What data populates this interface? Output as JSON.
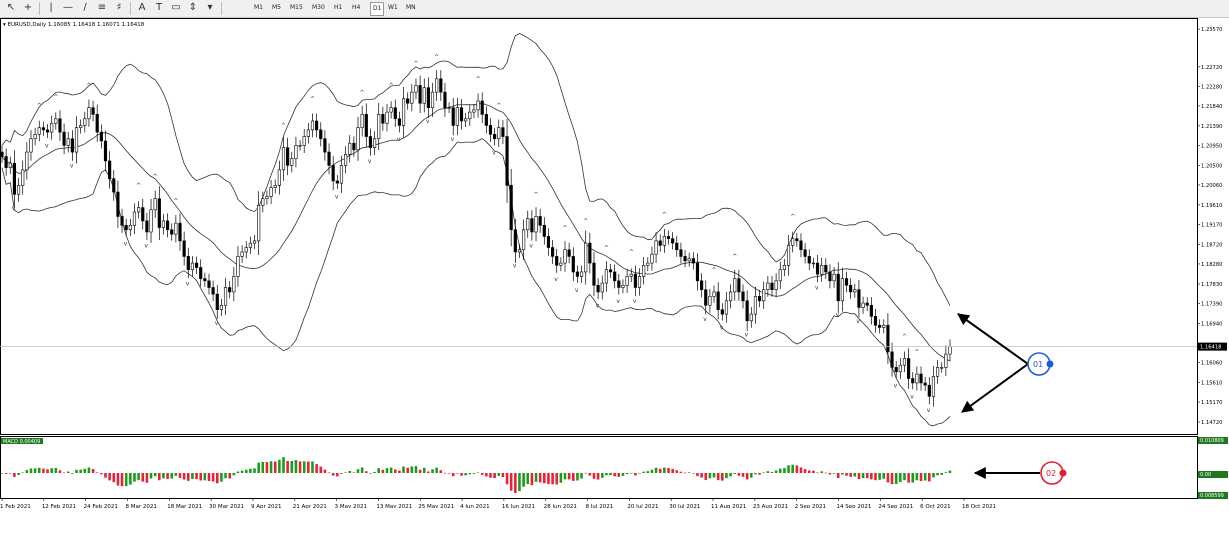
{
  "toolbar": {
    "tools": [
      {
        "name": "cursor-icon",
        "glyph": "↖"
      },
      {
        "name": "crosshair-icon",
        "glyph": "+"
      },
      {
        "name": "vertical-line-icon",
        "glyph": "|"
      },
      {
        "name": "horizontal-line-icon",
        "glyph": "—"
      },
      {
        "name": "trendline-icon",
        "glyph": "∕"
      },
      {
        "name": "channel-icon",
        "glyph": "≡"
      },
      {
        "name": "fibonacci-icon",
        "glyph": "♯"
      },
      {
        "name": "text-icon",
        "glyph": "A"
      },
      {
        "name": "label-icon",
        "glyph": "T"
      },
      {
        "name": "rectangle-icon",
        "glyph": "▭"
      },
      {
        "name": "arrows-icon",
        "glyph": "⇕"
      },
      {
        "name": "shapes-icon",
        "glyph": "▾"
      }
    ],
    "timeframes": [
      "M1",
      "M5",
      "M15",
      "M30",
      "H1",
      "H4",
      "D1",
      "W1",
      "MN"
    ],
    "active_timeframe": "D1"
  },
  "chart_data": {
    "type": "candlestick",
    "symbol_header": "EURUSD,Daily  1.16085 1.16418 1.16071 1.16418",
    "current_price_label": "1.16418",
    "current_price": 1.16418,
    "y_ticks": [
      "1.23570",
      "1.22720",
      "1.22280",
      "1.21840",
      "1.21390",
      "1.20950",
      "1.20500",
      "1.20060",
      "1.19610",
      "1.19170",
      "1.18720",
      "1.18280",
      "1.17830",
      "1.17390",
      "1.16940",
      "1.16060",
      "1.15610",
      "1.15170",
      "1.14720"
    ],
    "ylim": [
      1.1445,
      1.2382
    ],
    "x_ticks": [
      "1 Feb 2021",
      "12 Feb 2021",
      "24 Feb 2021",
      "8 Mar 2021",
      "18 Mar 2021",
      "30 Mar 2021",
      "9 Apr 2021",
      "21 Apr 2021",
      "3 May 2021",
      "13 May 2021",
      "25 May 2021",
      "4 Jun 2021",
      "16 Jun 2021",
      "28 Jun 2021",
      "8 Jul 2021",
      "20 Jul 2021",
      "30 Jul 2021",
      "11 Aug 2021",
      "23 Aug 2021",
      "2 Sep 2021",
      "14 Sep 2021",
      "24 Sep 2021",
      "6 Oct 2021",
      "18 Oct 2021"
    ],
    "closes": [
      1.207,
      1.2045,
      1.2055,
      1.1985,
      1.2005,
      1.204,
      1.208,
      1.211,
      1.212,
      1.2135,
      1.213,
      1.2125,
      1.2145,
      1.2155,
      1.2125,
      1.2095,
      1.211,
      1.208,
      1.2135,
      1.214,
      1.2155,
      1.218,
      1.2165,
      1.2125,
      1.2105,
      1.206,
      1.202,
      1.199,
      1.1935,
      1.1915,
      1.1905,
      1.1915,
      1.1945,
      1.1955,
      1.1925,
      1.19,
      1.195,
      1.1975,
      1.191,
      1.1925,
      1.1905,
      1.1895,
      1.192,
      1.188,
      1.1845,
      1.1815,
      1.183,
      1.182,
      1.1795,
      1.179,
      1.1775,
      1.176,
      1.1725,
      1.1735,
      1.1775,
      1.1765,
      1.18,
      1.1845,
      1.1855,
      1.1865,
      1.1875,
      1.188,
      1.196,
      1.1975,
      1.198,
      1.2,
      1.2005,
      1.204,
      1.209,
      1.205,
      1.2065,
      1.2095,
      1.2095,
      1.2115,
      1.213,
      1.215,
      1.213,
      1.211,
      1.208,
      1.205,
      1.2015,
      1.201,
      1.205,
      1.2075,
      1.21,
      1.2085,
      1.2135,
      1.2165,
      1.2115,
      1.209,
      1.211,
      1.2165,
      1.2145,
      1.217,
      1.218,
      1.2155,
      1.214,
      1.22,
      1.219,
      1.2215,
      1.223,
      1.219,
      1.2225,
      1.218,
      1.2215,
      1.2245,
      1.2215,
      1.218,
      1.218,
      1.214,
      1.218,
      1.215,
      1.2155,
      1.217,
      1.2175,
      1.2195,
      1.2165,
      1.214,
      1.212,
      1.211,
      1.2135,
      1.2115,
      1.2005,
      1.1905,
      1.1855,
      1.186,
      1.1905,
      1.193,
      1.19,
      1.1935,
      1.1915,
      1.189,
      1.1865,
      1.1845,
      1.1825,
      1.183,
      1.186,
      1.1845,
      1.181,
      1.18,
      1.181,
      1.1875,
      1.183,
      1.178,
      1.1765,
      1.1785,
      1.1815,
      1.181,
      1.179,
      1.1775,
      1.178,
      1.18,
      1.1805,
      1.1775,
      1.18,
      1.1825,
      1.183,
      1.185,
      1.188,
      1.187,
      1.189,
      1.1885,
      1.1875,
      1.186,
      1.1845,
      1.1835,
      1.184,
      1.183,
      1.179,
      1.177,
      1.1735,
      1.1755,
      1.1765,
      1.1725,
      1.1715,
      1.1745,
      1.1765,
      1.1795,
      1.1765,
      1.1745,
      1.17,
      1.1715,
      1.1755,
      1.1745,
      1.177,
      1.1785,
      1.177,
      1.179,
      1.1815,
      1.1825,
      1.187,
      1.1885,
      1.188,
      1.186,
      1.1845,
      1.183,
      1.183,
      1.1805,
      1.1825,
      1.181,
      1.179,
      1.1805,
      1.1745,
      1.1795,
      1.178,
      1.1765,
      1.177,
      1.173,
      1.174,
      1.1735,
      1.171,
      1.169,
      1.1685,
      1.169,
      1.163,
      1.1595,
      1.1585,
      1.16,
      1.1615,
      1.157,
      1.156,
      1.158,
      1.156,
      1.1555,
      1.153,
      1.1575,
      1.1595,
      1.1595,
      1.1625,
      1.1642
    ],
    "macd_label": "MACD 0.00409",
    "macd_axis": [
      "0.010809",
      "0.00",
      "0.008599"
    ],
    "annotations": [
      "01",
      "02"
    ]
  }
}
